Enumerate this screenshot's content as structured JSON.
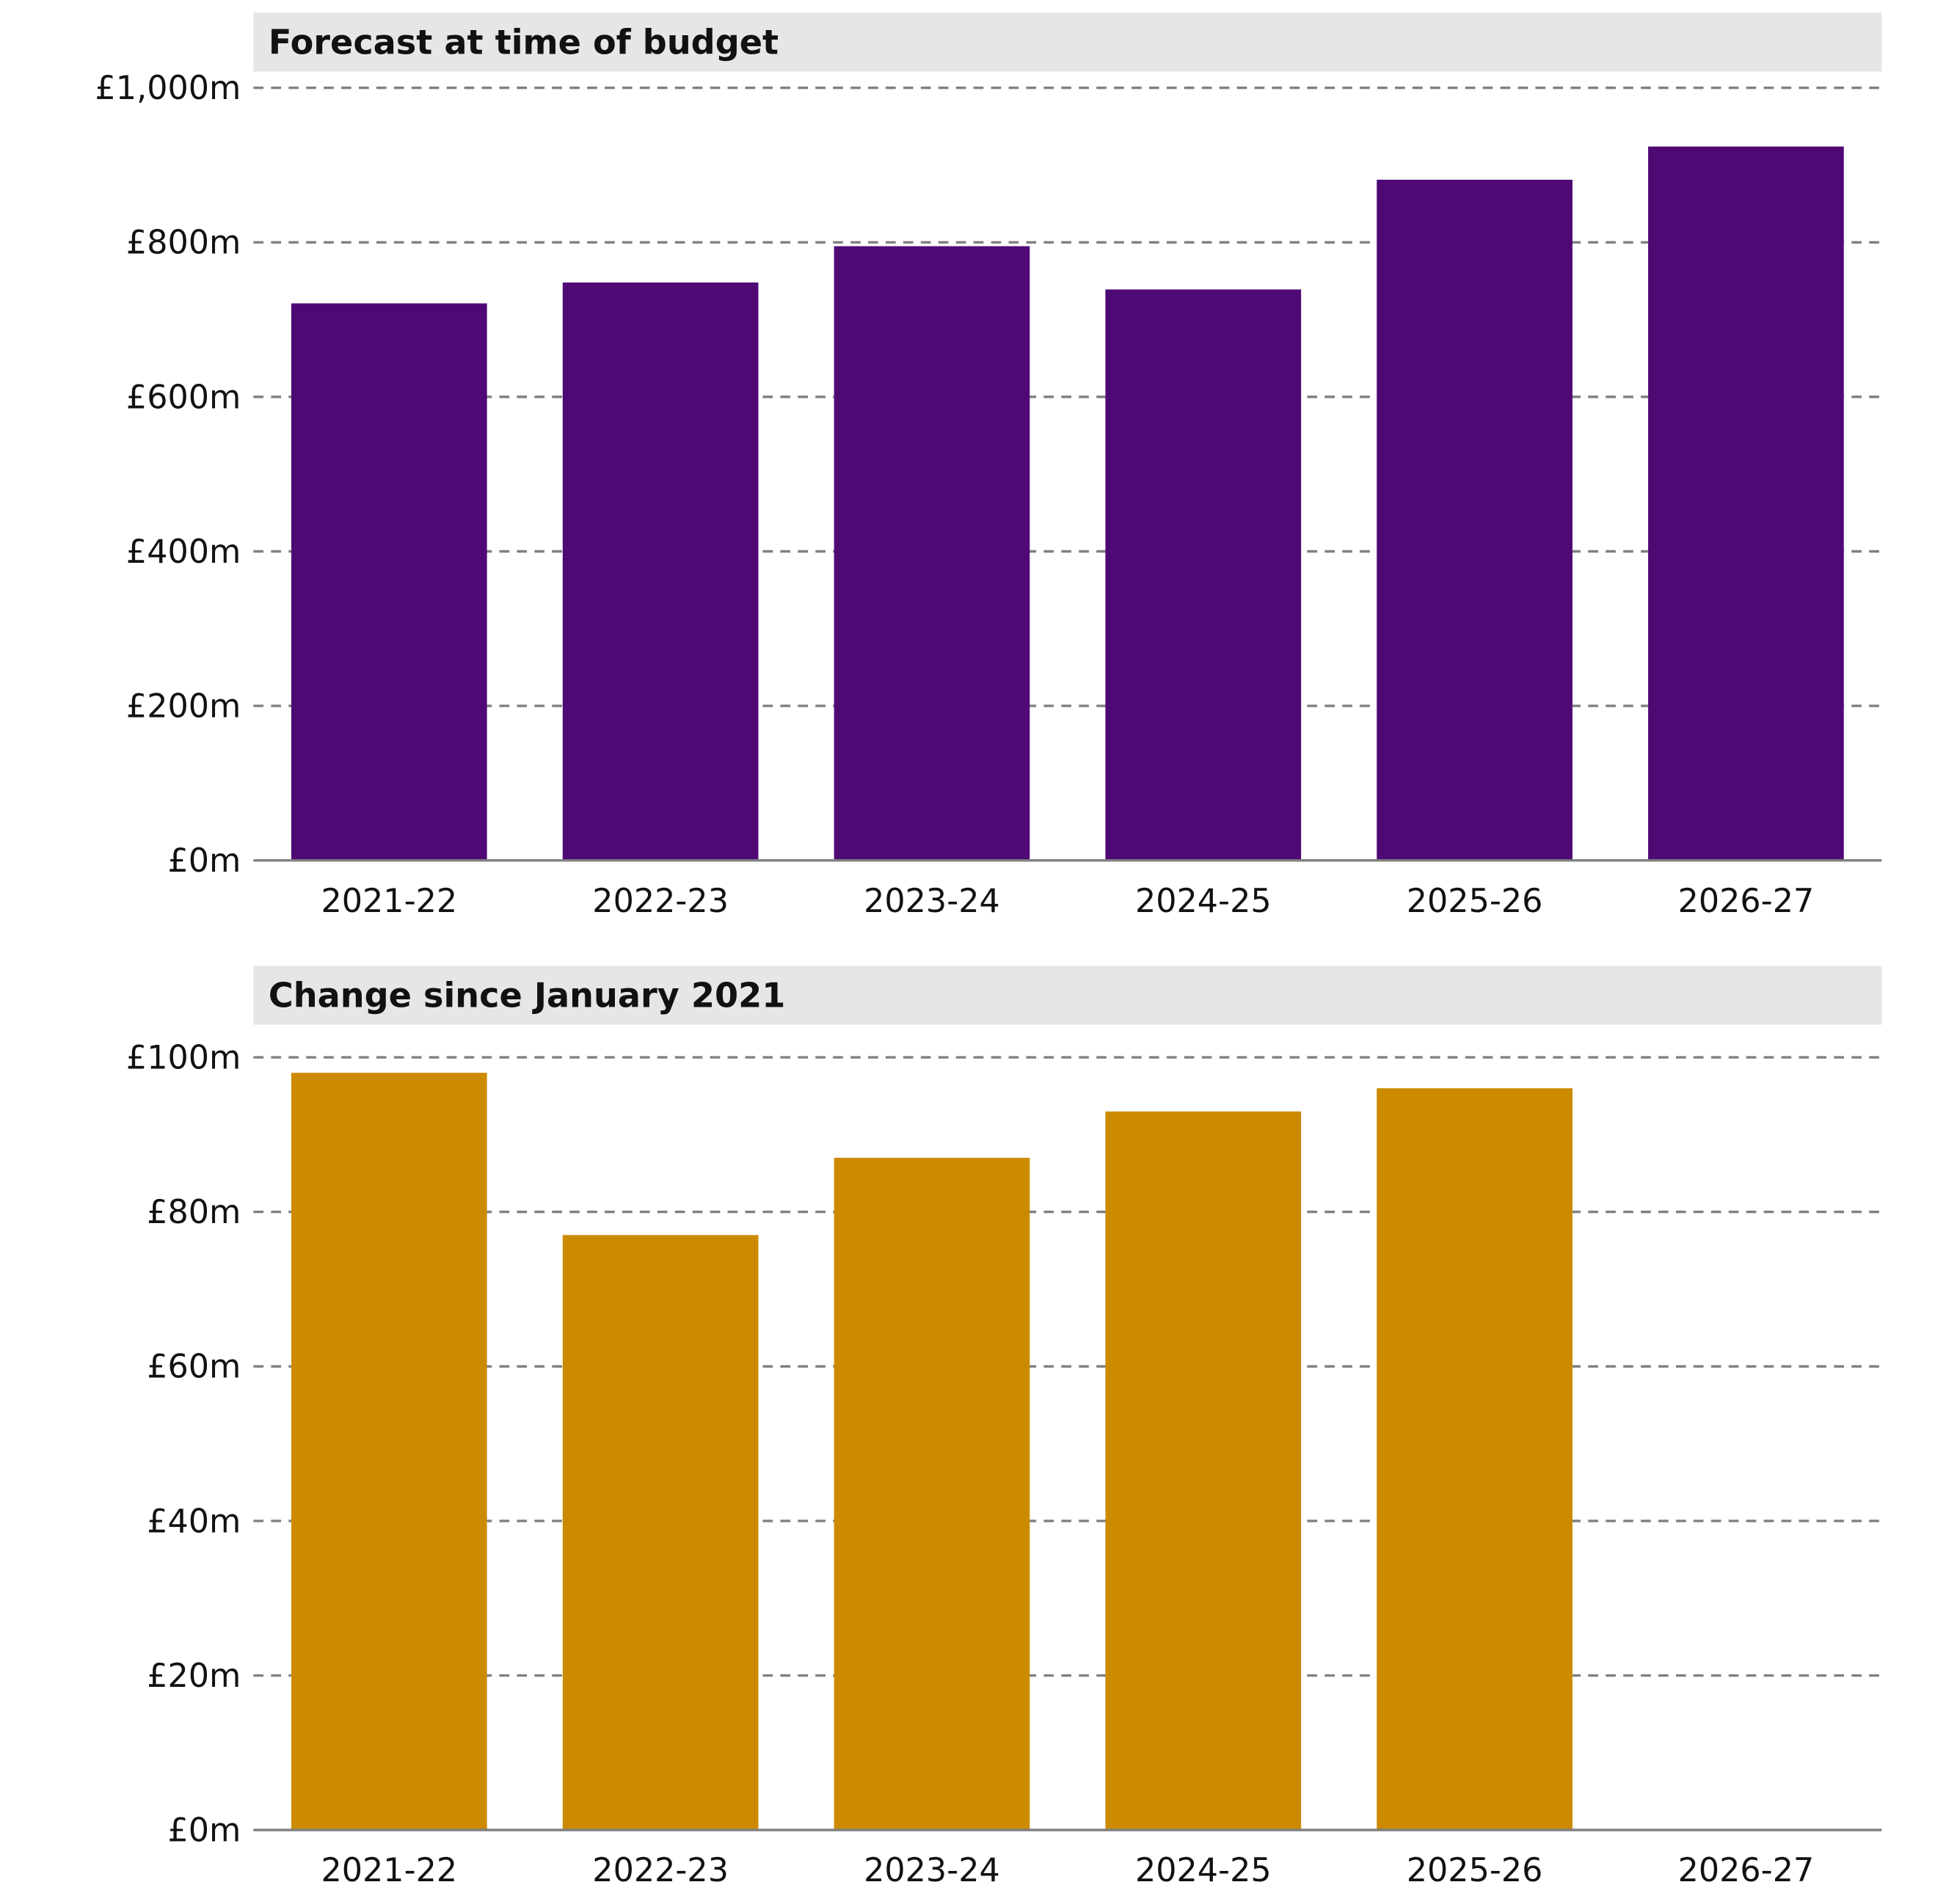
{
  "chart_data": [
    {
      "type": "bar",
      "title": "Forecast at time of budget",
      "categories": [
        "2021-22",
        "2022-23",
        "2023-24",
        "2024-25",
        "2025-26",
        "2026-27"
      ],
      "values": [
        721,
        748,
        795,
        739,
        881,
        924
      ],
      "unit": "£m",
      "ylim": [
        0,
        1000
      ],
      "yticks": [
        0,
        200,
        400,
        600,
        800,
        1000
      ],
      "ytick_labels": [
        "£0m",
        "£200m",
        "£400m",
        "£600m",
        "£800m",
        "£1,000m"
      ],
      "color": "#4f0975",
      "grid": "horizontal dashed"
    },
    {
      "type": "bar",
      "title": "Change since January 2021",
      "categories": [
        "2021-22",
        "2022-23",
        "2023-24",
        "2024-25",
        "2025-26",
        "2026-27"
      ],
      "values": [
        98,
        77,
        87,
        93,
        96,
        null
      ],
      "unit": "£m",
      "ylim": [
        0,
        100
      ],
      "yticks": [
        0,
        20,
        40,
        60,
        80,
        100
      ],
      "ytick_labels": [
        "£0m",
        "£20m",
        "£40m",
        "£60m",
        "£80m",
        "£100m"
      ],
      "color": "#cc8a00",
      "grid": "horizontal dashed"
    }
  ]
}
